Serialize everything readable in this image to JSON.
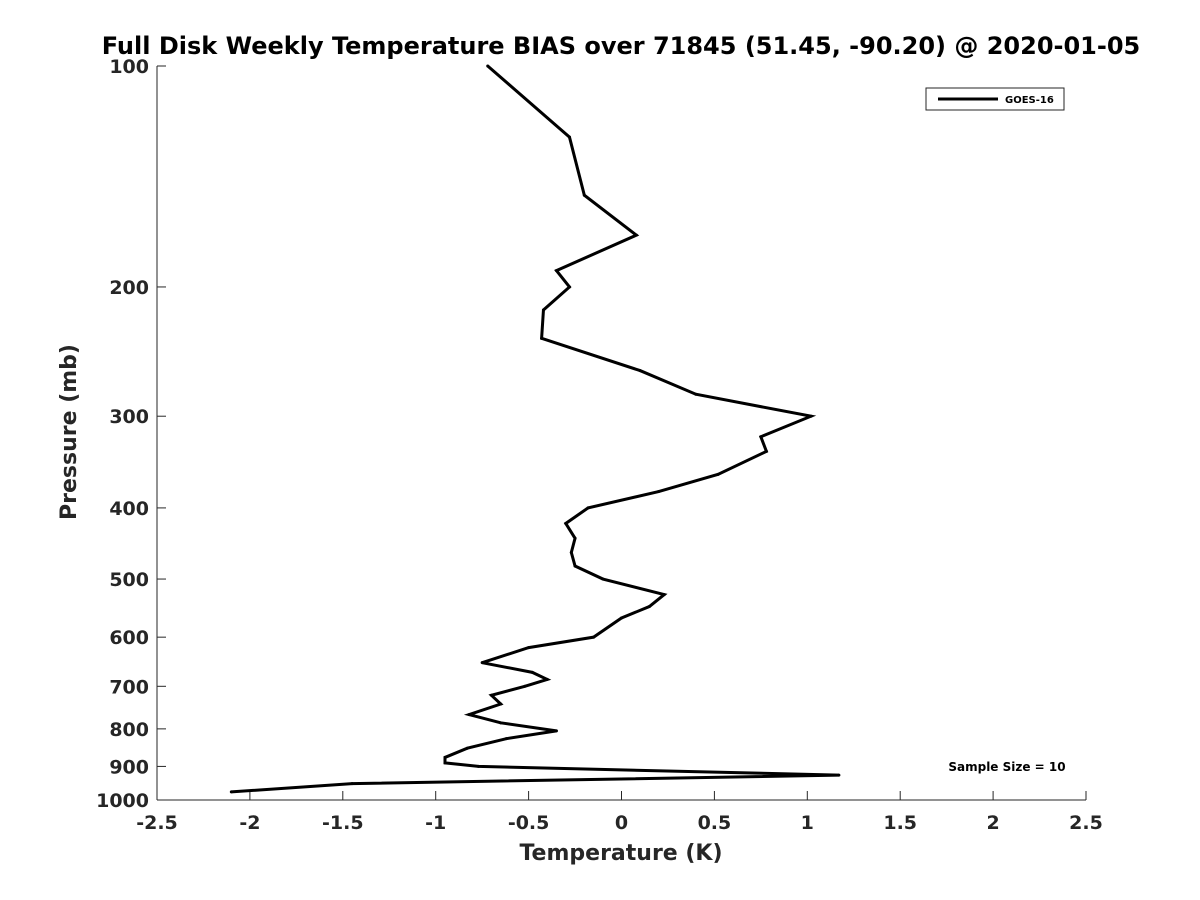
{
  "chart_data": {
    "type": "line",
    "title": "Full Disk Weekly Temperature BIAS over 71845 (51.45, -90.20) @ 2020-01-05",
    "xlabel": "Temperature (K)",
    "ylabel": "Pressure (mb)",
    "xlim": [
      -2.5,
      2.5
    ],
    "ylim": [
      100,
      1000
    ],
    "y_scale": "log",
    "y_reversed": true,
    "grid": false,
    "legend_position": "top-right",
    "annotation": "Sample Size = 10",
    "x_ticks": [
      -2.5,
      -2,
      -1.5,
      -1,
      -0.5,
      0,
      0.5,
      1,
      1.5,
      2,
      2.5
    ],
    "x_tick_labels": [
      "-2.5",
      "-2",
      "-1.5",
      "-1",
      "-0.5",
      "0",
      "0.5",
      "1",
      "1.5",
      "2",
      "2.5"
    ],
    "y_ticks": [
      100,
      200,
      300,
      400,
      500,
      600,
      700,
      800,
      900,
      1000
    ],
    "y_tick_labels": [
      "100",
      "200",
      "300",
      "400",
      "500",
      "600",
      "700",
      "800",
      "900",
      "1000"
    ],
    "series": [
      {
        "name": "GOES-16",
        "color": "#000000",
        "points": [
          {
            "x": -0.72,
            "p": 100
          },
          {
            "x": -0.28,
            "p": 125
          },
          {
            "x": -0.2,
            "p": 150
          },
          {
            "x": 0.08,
            "p": 170
          },
          {
            "x": -0.35,
            "p": 190
          },
          {
            "x": -0.28,
            "p": 200
          },
          {
            "x": -0.42,
            "p": 215
          },
          {
            "x": -0.43,
            "p": 235
          },
          {
            "x": 0.1,
            "p": 260
          },
          {
            "x": 0.4,
            "p": 280
          },
          {
            "x": 1.02,
            "p": 300
          },
          {
            "x": 0.75,
            "p": 320
          },
          {
            "x": 0.78,
            "p": 335
          },
          {
            "x": 0.52,
            "p": 360
          },
          {
            "x": 0.2,
            "p": 380
          },
          {
            "x": -0.18,
            "p": 400
          },
          {
            "x": -0.3,
            "p": 420
          },
          {
            "x": -0.25,
            "p": 440
          },
          {
            "x": -0.27,
            "p": 460
          },
          {
            "x": -0.25,
            "p": 480
          },
          {
            "x": -0.1,
            "p": 500
          },
          {
            "x": 0.23,
            "p": 525
          },
          {
            "x": 0.15,
            "p": 545
          },
          {
            "x": 0.0,
            "p": 565
          },
          {
            "x": -0.15,
            "p": 600
          },
          {
            "x": -0.5,
            "p": 620
          },
          {
            "x": -0.75,
            "p": 650
          },
          {
            "x": -0.48,
            "p": 670
          },
          {
            "x": -0.4,
            "p": 685
          },
          {
            "x": -0.52,
            "p": 700
          },
          {
            "x": -0.7,
            "p": 720
          },
          {
            "x": -0.65,
            "p": 740
          },
          {
            "x": -0.82,
            "p": 765
          },
          {
            "x": -0.65,
            "p": 785
          },
          {
            "x": -0.35,
            "p": 805
          },
          {
            "x": -0.62,
            "p": 825
          },
          {
            "x": -0.83,
            "p": 850
          },
          {
            "x": -0.95,
            "p": 875
          },
          {
            "x": -0.95,
            "p": 890
          },
          {
            "x": -0.77,
            "p": 900
          },
          {
            "x": 1.17,
            "p": 925
          },
          {
            "x": -1.45,
            "p": 950
          },
          {
            "x": -2.1,
            "p": 975
          }
        ]
      }
    ]
  }
}
